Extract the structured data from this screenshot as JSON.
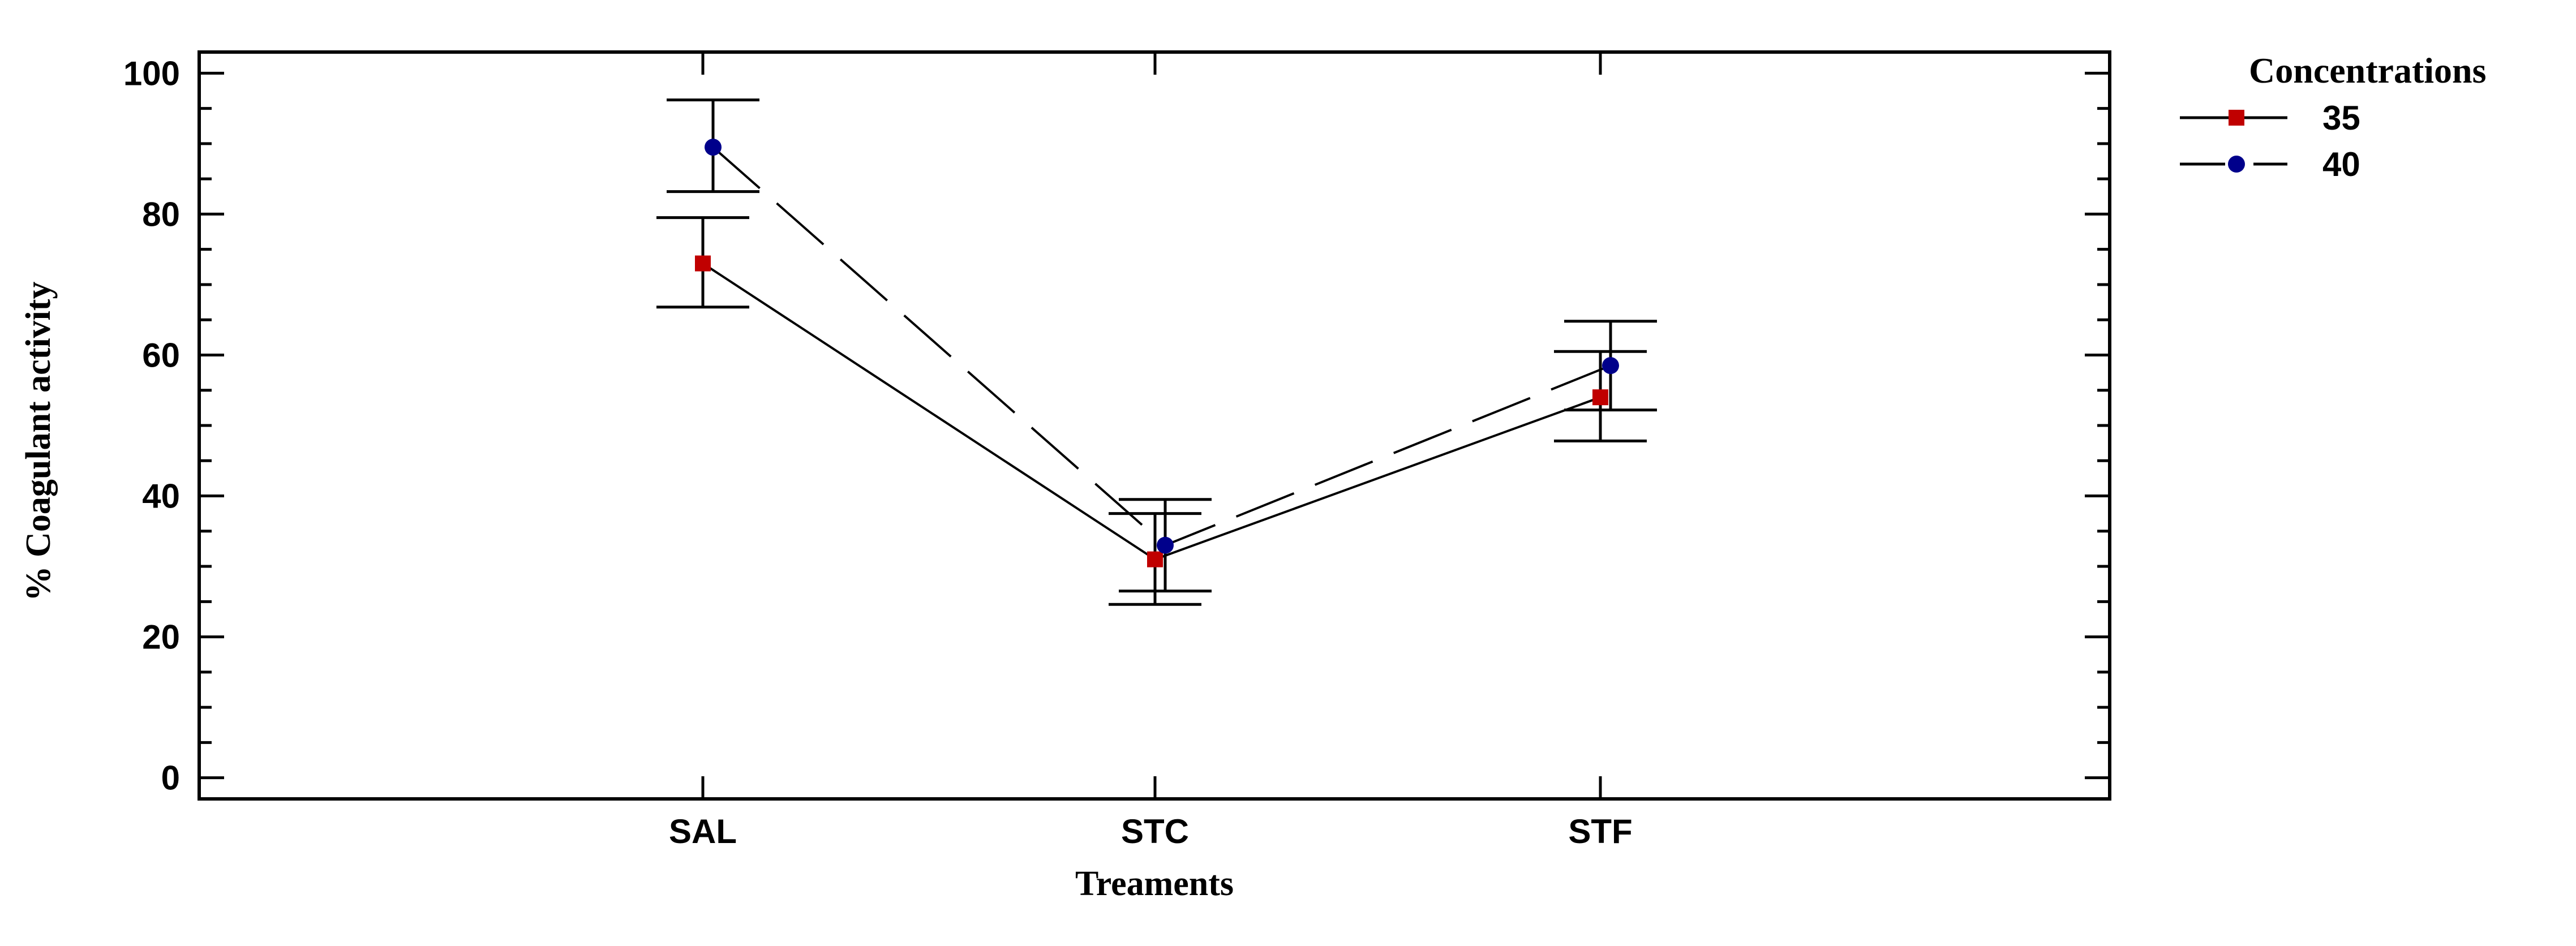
{
  "chart_data": {
    "type": "line",
    "xlabel": "Treaments",
    "ylabel": "% Coagulant activity",
    "categories": [
      "SAL",
      "STC",
      "STF"
    ],
    "ylim": [
      -3,
      103
    ],
    "yticks": [
      0,
      20,
      40,
      60,
      80,
      100
    ],
    "grid": false,
    "legend": {
      "title": "Concentrations",
      "position": "top-right",
      "entries": [
        "35",
        "40"
      ]
    },
    "series": [
      {
        "name": "35",
        "values": [
          73,
          31,
          54
        ],
        "error_low": [
          66.8,
          24.6,
          47.8
        ],
        "error_high": [
          79.5,
          37.5,
          60.5
        ],
        "color": "#c00000",
        "marker": "square",
        "line_style": "solid"
      },
      {
        "name": "40",
        "values": [
          89.5,
          33,
          58.5
        ],
        "error_low": [
          83.2,
          26.5,
          52.2
        ],
        "error_high": [
          96.2,
          39.5,
          64.8
        ],
        "color": "#00008b",
        "marker": "circle",
        "line_style": "dashed"
      }
    ]
  }
}
